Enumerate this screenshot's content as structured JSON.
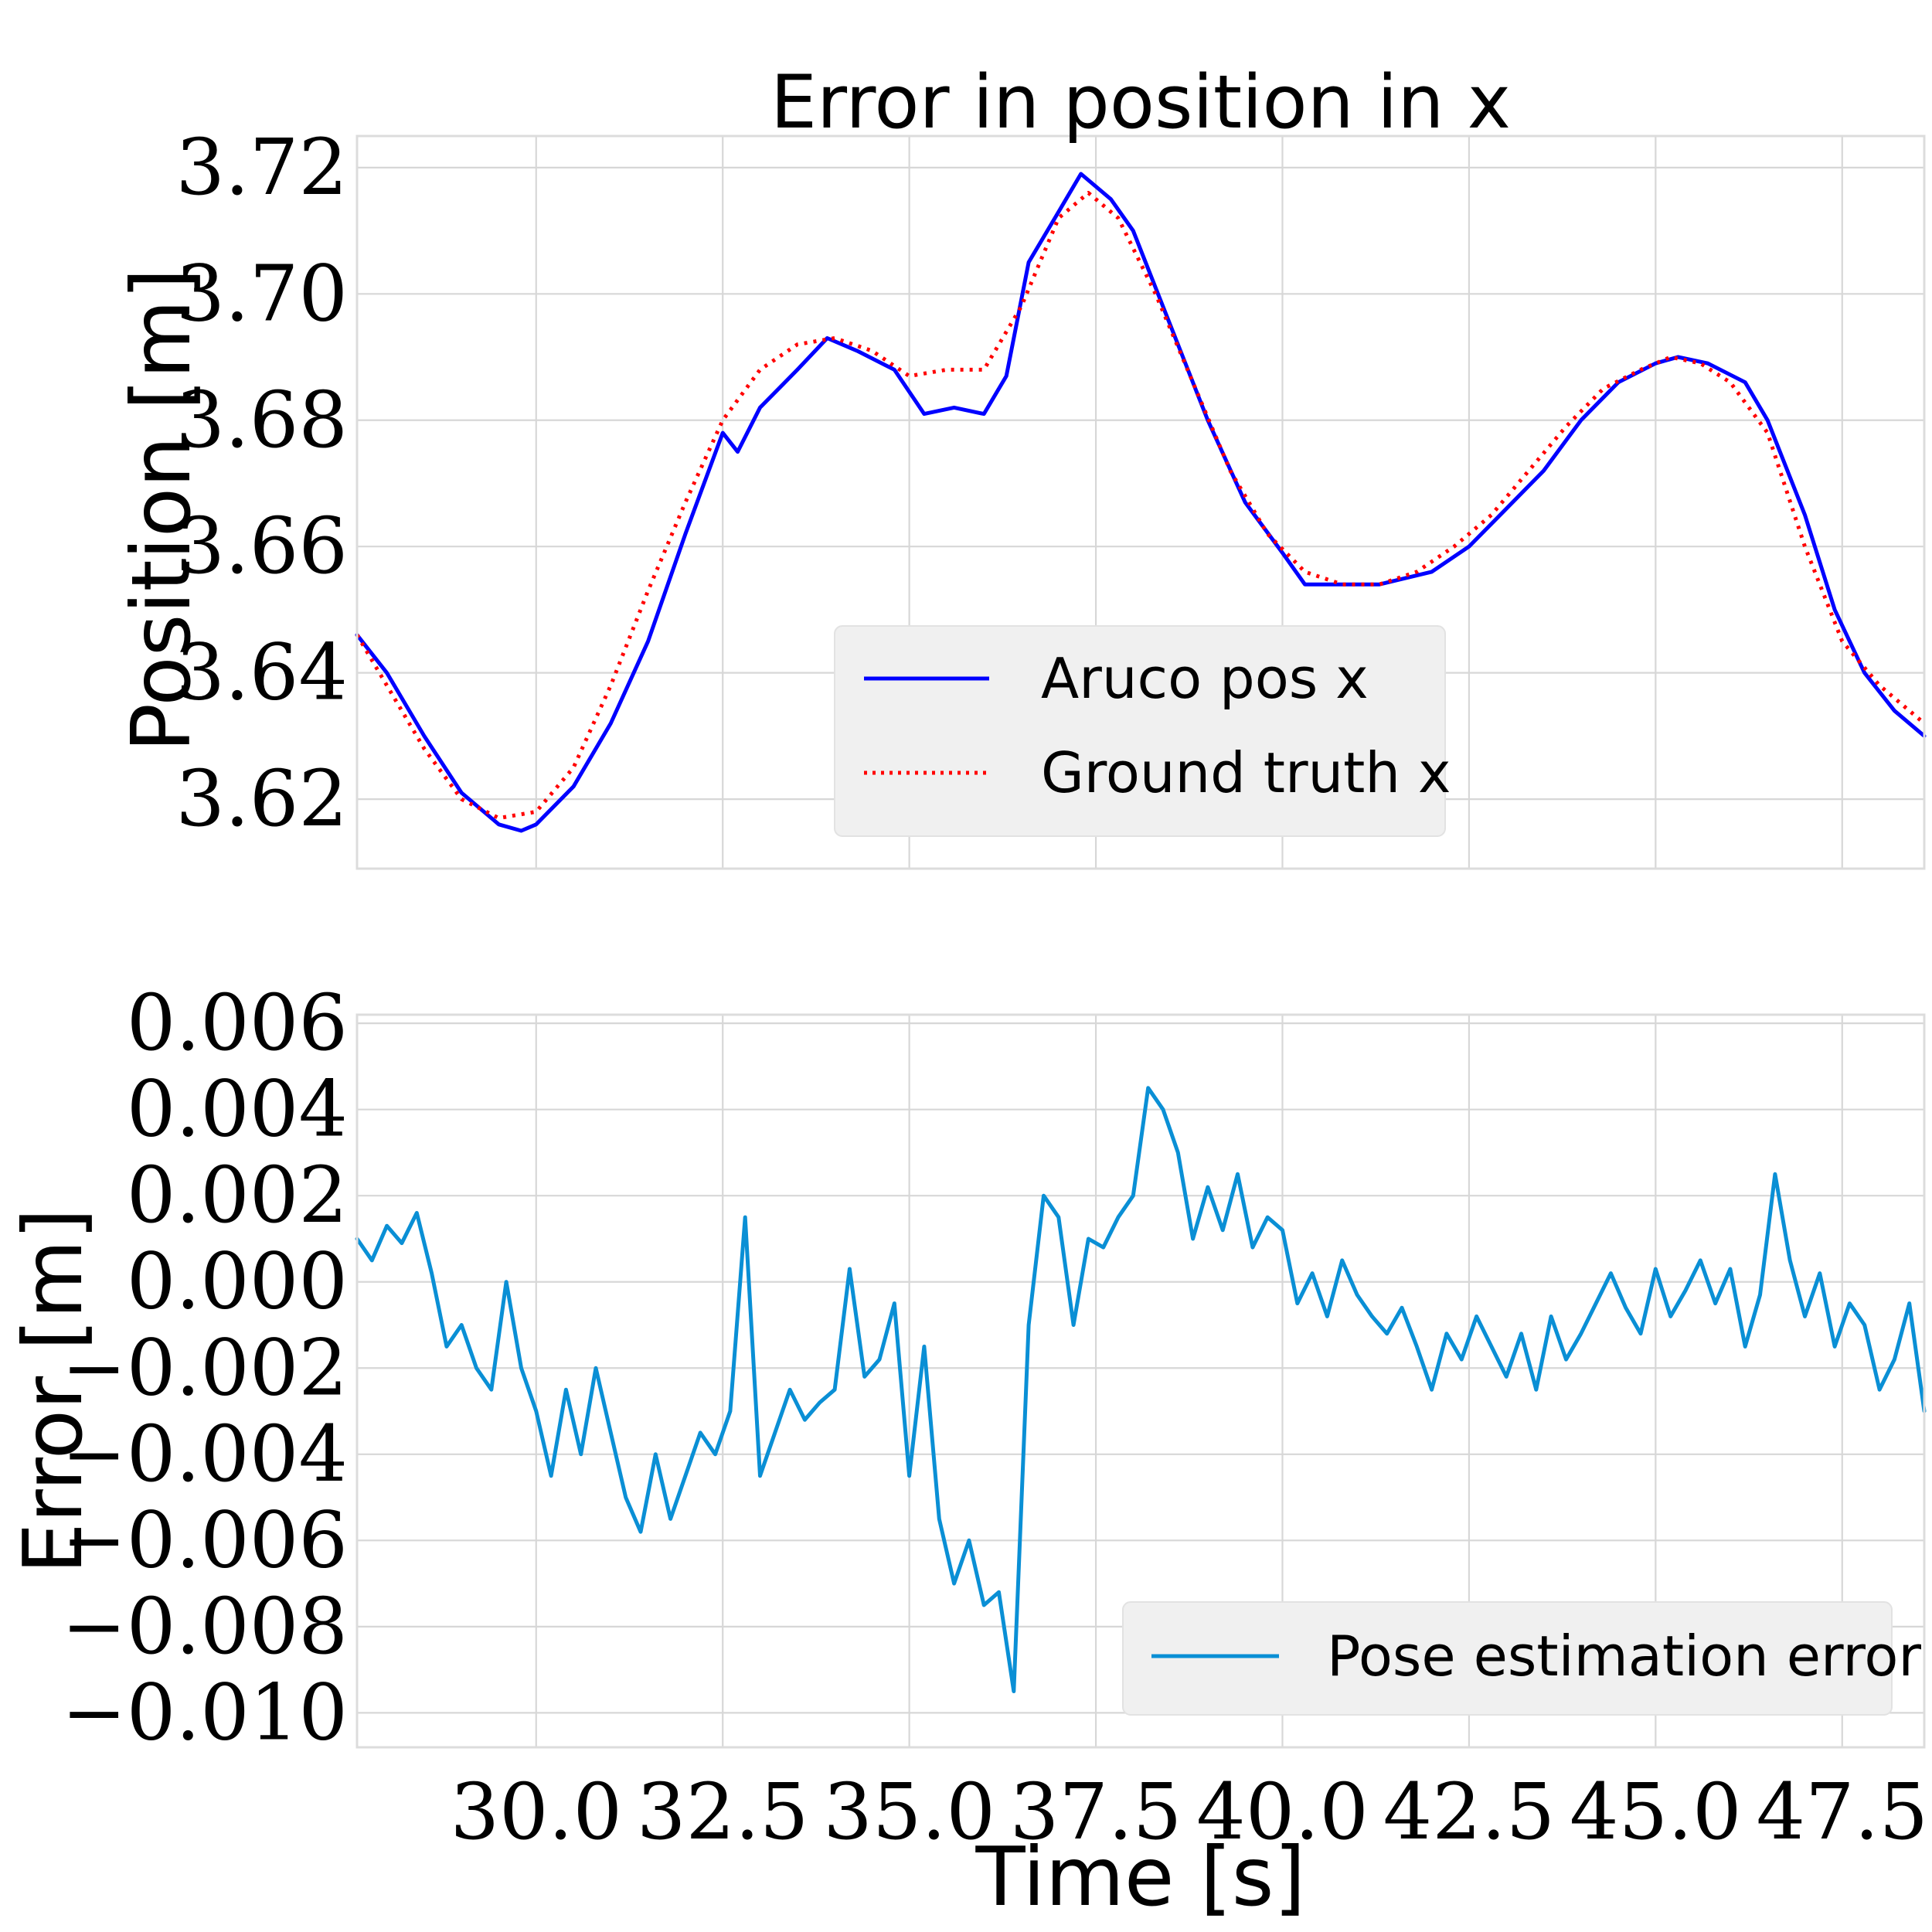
{
  "chart_data": [
    {
      "type": "line",
      "title": "Error in position in x",
      "xlabel": "",
      "ylabel": "Position [m]",
      "xlim": [
        27.6,
        48.6
      ],
      "ylim": [
        3.609,
        3.725
      ],
      "yticks": [
        "3.62",
        "3.64",
        "3.66",
        "3.68",
        "3.70",
        "3.72"
      ],
      "ytick_values": [
        3.62,
        3.64,
        3.66,
        3.68,
        3.7,
        3.72
      ],
      "xticks_values": [
        30.0,
        32.5,
        35.0,
        37.5,
        40.0,
        42.5,
        45.0,
        47.5
      ],
      "grid": true,
      "legend": "lower-center",
      "series": [
        {
          "name": "Aruco pos x",
          "color": "#0000ff",
          "style": "solid",
          "x": [
            27.6,
            28.0,
            28.5,
            29.0,
            29.5,
            29.8,
            30.0,
            30.5,
            31.0,
            31.5,
            32.0,
            32.5,
            32.7,
            33.0,
            33.5,
            33.9,
            34.3,
            34.8,
            35.2,
            35.6,
            36.0,
            36.3,
            36.6,
            37.0,
            37.3,
            37.7,
            38.0,
            38.5,
            39.0,
            39.5,
            40.0,
            40.3,
            40.8,
            41.3,
            42.0,
            42.5,
            43.0,
            43.5,
            44.0,
            44.5,
            45.0,
            45.3,
            45.7,
            46.2,
            46.5,
            47.0,
            47.4,
            47.8,
            48.2,
            48.6
          ],
          "y": [
            3.646,
            3.64,
            3.63,
            3.621,
            3.616,
            3.615,
            3.616,
            3.622,
            3.632,
            3.645,
            3.662,
            3.678,
            3.675,
            3.682,
            3.688,
            3.693,
            3.691,
            3.688,
            3.681,
            3.682,
            3.681,
            3.687,
            3.705,
            3.713,
            3.719,
            3.715,
            3.71,
            3.695,
            3.68,
            3.667,
            3.659,
            3.654,
            3.654,
            3.654,
            3.656,
            3.66,
            3.666,
            3.672,
            3.68,
            3.686,
            3.689,
            3.69,
            3.689,
            3.686,
            3.68,
            3.665,
            3.65,
            3.64,
            3.634,
            3.63
          ]
        },
        {
          "name": "Ground truth x",
          "color": "#ff0000",
          "style": "dotted",
          "x": [
            27.6,
            28.0,
            28.5,
            29.0,
            29.5,
            30.0,
            30.5,
            31.0,
            31.5,
            32.0,
            32.5,
            33.0,
            33.5,
            34.0,
            34.5,
            35.0,
            35.5,
            36.0,
            36.5,
            37.0,
            37.4,
            37.8,
            38.3,
            38.8,
            39.3,
            39.8,
            40.3,
            40.8,
            41.3,
            41.8,
            42.3,
            42.8,
            43.3,
            43.8,
            44.3,
            44.8,
            45.2,
            45.6,
            46.0,
            46.5,
            47.0,
            47.5,
            48.0,
            48.6
          ],
          "y": [
            3.646,
            3.638,
            3.628,
            3.62,
            3.617,
            3.618,
            3.625,
            3.638,
            3.653,
            3.667,
            3.68,
            3.688,
            3.692,
            3.693,
            3.691,
            3.687,
            3.688,
            3.688,
            3.698,
            3.712,
            3.716,
            3.712,
            3.7,
            3.686,
            3.672,
            3.662,
            3.656,
            3.654,
            3.654,
            3.656,
            3.66,
            3.665,
            3.672,
            3.679,
            3.685,
            3.688,
            3.69,
            3.689,
            3.686,
            3.678,
            3.66,
            3.645,
            3.638,
            3.632
          ]
        }
      ]
    },
    {
      "type": "line",
      "title": "",
      "xlabel": "Time [s]",
      "ylabel": "Error [m]",
      "xlim": [
        27.6,
        48.6
      ],
      "ylim": [
        -0.0108,
        0.0062
      ],
      "yticks": [
        "0.006",
        "0.004",
        "0.002",
        "0.000",
        "−0.002",
        "−0.004",
        "−0.006",
        "−0.008",
        "−0.010"
      ],
      "ytick_values": [
        0.006,
        0.004,
        0.002,
        0.0,
        -0.002,
        -0.004,
        -0.006,
        -0.008,
        -0.01
      ],
      "xticks": [
        "30.0",
        "32.5",
        "35.0",
        "37.5",
        "40.0",
        "42.5",
        "45.0",
        "47.5"
      ],
      "xticks_values": [
        30.0,
        32.5,
        35.0,
        37.5,
        40.0,
        42.5,
        45.0,
        47.5
      ],
      "grid": true,
      "legend": "lower-right",
      "series": [
        {
          "name": "Pose estimation error",
          "color": "#0a8fd5",
          "style": "solid",
          "x": [
            27.6,
            27.8,
            28.0,
            28.2,
            28.4,
            28.6,
            28.8,
            29.0,
            29.2,
            29.4,
            29.6,
            29.8,
            30.0,
            30.2,
            30.4,
            30.6,
            30.8,
            31.0,
            31.2,
            31.4,
            31.6,
            31.8,
            32.0,
            32.2,
            32.4,
            32.6,
            32.8,
            33.0,
            33.2,
            33.4,
            33.6,
            33.8,
            34.0,
            34.2,
            34.4,
            34.6,
            34.8,
            35.0,
            35.2,
            35.4,
            35.6,
            35.8,
            36.0,
            36.2,
            36.4,
            36.6,
            36.8,
            37.0,
            37.2,
            37.4,
            37.6,
            37.8,
            38.0,
            38.2,
            38.4,
            38.6,
            38.8,
            39.0,
            39.2,
            39.4,
            39.6,
            39.8,
            40.0,
            40.2,
            40.4,
            40.6,
            40.8,
            41.0,
            41.2,
            41.4,
            41.6,
            41.8,
            42.0,
            42.2,
            42.4,
            42.6,
            42.8,
            43.0,
            43.2,
            43.4,
            43.6,
            43.8,
            44.0,
            44.2,
            44.4,
            44.6,
            44.8,
            45.0,
            45.2,
            45.4,
            45.6,
            45.8,
            46.0,
            46.2,
            46.4,
            46.6,
            46.8,
            47.0,
            47.2,
            47.4,
            47.6,
            47.8,
            48.0,
            48.2,
            48.4,
            48.6
          ],
          "y": [
            0.001,
            0.0005,
            0.0013,
            0.0009,
            0.0016,
            0.0002,
            -0.0015,
            -0.001,
            -0.002,
            -0.0025,
            0.0,
            -0.002,
            -0.003,
            -0.0045,
            -0.0025,
            -0.004,
            -0.002,
            -0.0035,
            -0.005,
            -0.0058,
            -0.004,
            -0.0055,
            -0.0045,
            -0.0035,
            -0.004,
            -0.003,
            0.0015,
            -0.0045,
            -0.0035,
            -0.0025,
            -0.0032,
            -0.0028,
            -0.0025,
            0.0003,
            -0.0022,
            -0.0018,
            -0.0005,
            -0.0045,
            -0.0015,
            -0.0055,
            -0.007,
            -0.006,
            -0.0075,
            -0.0072,
            -0.0095,
            -0.001,
            0.002,
            0.0015,
            -0.001,
            0.001,
            0.0008,
            0.0015,
            0.002,
            0.0045,
            0.004,
            0.003,
            0.001,
            0.0022,
            0.0012,
            0.0025,
            0.0008,
            0.0015,
            0.0012,
            -0.0005,
            0.0002,
            -0.0008,
            0.0005,
            -0.0003,
            -0.0008,
            -0.0012,
            -0.0006,
            -0.0015,
            -0.0025,
            -0.0012,
            -0.0018,
            -0.0008,
            -0.0015,
            -0.0022,
            -0.0012,
            -0.0025,
            -0.0008,
            -0.0018,
            -0.0012,
            -0.0005,
            0.0002,
            -0.0006,
            -0.0012,
            0.0003,
            -0.0008,
            -0.0002,
            0.0005,
            -0.0005,
            0.0003,
            -0.0015,
            -0.0003,
            0.0025,
            0.0005,
            -0.0008,
            0.0002,
            -0.0015,
            -0.0005,
            -0.001,
            -0.0025,
            -0.0018,
            -0.0005,
            -0.003
          ]
        }
      ]
    }
  ]
}
